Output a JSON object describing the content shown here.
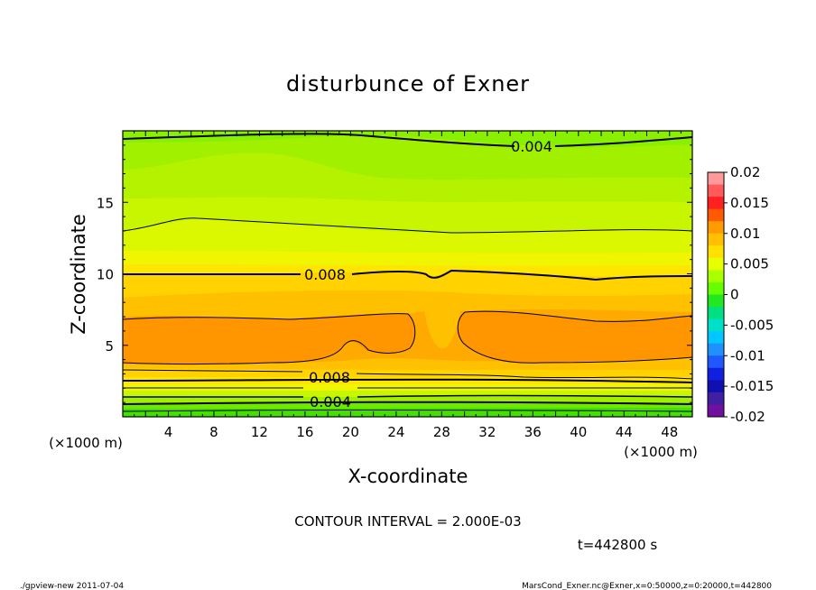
{
  "chart_data": {
    "type": "contour",
    "title": "disturbunce of Exner",
    "xlabel": "X-coordinate",
    "ylabel": "Z-coordinate",
    "x_unit": "(×1000 m)",
    "xlim": [
      0,
      50
    ],
    "ylim": [
      0,
      20
    ],
    "x_ticks": [
      4,
      8,
      12,
      16,
      20,
      24,
      28,
      32,
      36,
      40,
      44,
      48
    ],
    "y_ticks": [
      5,
      10,
      15
    ],
    "contour_labels": [
      "0.004",
      "0.008",
      "0.008",
      "0.004"
    ],
    "colorbar": {
      "ticks": [
        "0.02",
        "0.015",
        "0.01",
        "0.005",
        "0",
        "-0.005",
        "-0.01",
        "-0.015",
        "-0.02"
      ],
      "colors": [
        "#ff9a9a",
        "#ff5a5a",
        "#ff2020",
        "#ff5a00",
        "#ff9a00",
        "#ffc000",
        "#ffe000",
        "#e8ff00",
        "#aaff00",
        "#66ff00",
        "#22e822",
        "#00e080",
        "#00e0c8",
        "#00c8ff",
        "#2090ff",
        "#2058ff",
        "#1020e0",
        "#1010b0",
        "#4020a0",
        "#7010a0"
      ]
    },
    "contour_interval": "CONTOUR INTERVAL = 2.000E-03",
    "time": "t=442800 s"
  },
  "footer": {
    "left": "./gpview-new  2011-07-04",
    "right": "MarsCond_Exner.nc@Exner,x=0:50000,z=0:20000,t=442800"
  }
}
